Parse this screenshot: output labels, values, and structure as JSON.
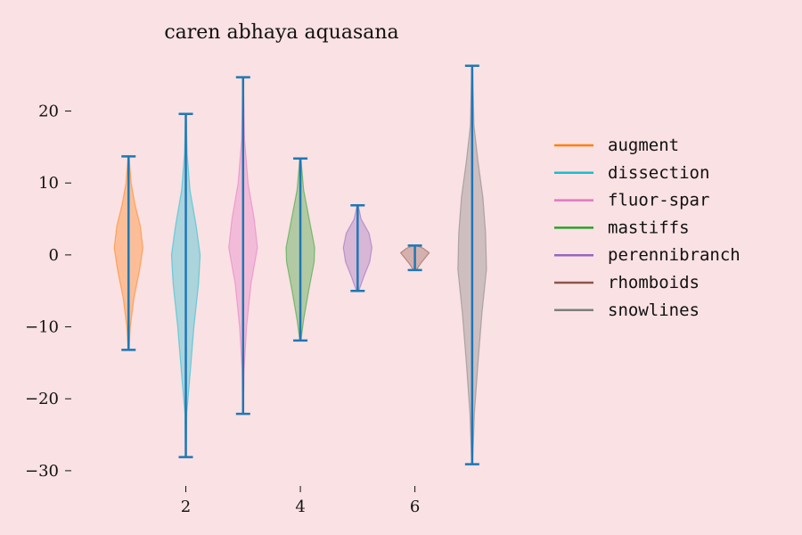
{
  "chart_data": {
    "type": "violin",
    "title": "caren abhaya aquasana",
    "xlabel": "",
    "ylabel": "",
    "xlim": [
      0.0,
      7.5
    ],
    "ylim": [
      -31.5,
      28.0
    ],
    "x_ticks": [
      2,
      4,
      6
    ],
    "y_ticks": [
      -30,
      -20,
      -10,
      0,
      10,
      20
    ],
    "grid": false,
    "legend_position": "right",
    "median_color": "#1f77b4",
    "series": [
      {
        "name": "augment",
        "position": 1,
        "color": "#ff7f0e",
        "min": -13.2,
        "max": 13.7,
        "median": 0.0,
        "density": [
          [
            -13.2,
            0.02
          ],
          [
            -10,
            0.08
          ],
          [
            -6,
            0.25
          ],
          [
            -2,
            0.52
          ],
          [
            1,
            0.67
          ],
          [
            4,
            0.55
          ],
          [
            7,
            0.3
          ],
          [
            10,
            0.12
          ],
          [
            13.7,
            0.02
          ]
        ]
      },
      {
        "name": "dissection",
        "position": 2,
        "color": "#17becf",
        "min": -28.1,
        "max": 19.6,
        "median": 0.0,
        "density": [
          [
            -28.1,
            0.01
          ],
          [
            -22,
            0.04
          ],
          [
            -16,
            0.2
          ],
          [
            -10,
            0.35
          ],
          [
            -4,
            0.55
          ],
          [
            0,
            0.62
          ],
          [
            4,
            0.45
          ],
          [
            9,
            0.18
          ],
          [
            14,
            0.06
          ],
          [
            19.6,
            0.01
          ]
        ]
      },
      {
        "name": "fluor-spar",
        "position": 3,
        "color": "#e377c2",
        "min": -22.1,
        "max": 24.7,
        "median": 0.0,
        "density": [
          [
            -22.1,
            0.01
          ],
          [
            -16,
            0.04
          ],
          [
            -10,
            0.14
          ],
          [
            -4,
            0.32
          ],
          [
            1,
            0.58
          ],
          [
            5,
            0.45
          ],
          [
            10,
            0.2
          ],
          [
            16,
            0.06
          ],
          [
            24.7,
            0.01
          ]
        ]
      },
      {
        "name": "mastiffs",
        "position": 4,
        "color": "#2ca02c",
        "min": -11.9,
        "max": 13.4,
        "median": 0.0,
        "density": [
          [
            -11.9,
            0.02
          ],
          [
            -9,
            0.12
          ],
          [
            -5,
            0.3
          ],
          [
            -1,
            0.5
          ],
          [
            1,
            0.52
          ],
          [
            5,
            0.32
          ],
          [
            9,
            0.12
          ],
          [
            13.4,
            0.02
          ]
        ]
      },
      {
        "name": "perennibranch",
        "position": 5,
        "color": "#9467bd",
        "min": -5.0,
        "max": 6.9,
        "median": 0.0,
        "density": [
          [
            -5,
            0.04
          ],
          [
            -3,
            0.22
          ],
          [
            -1,
            0.42
          ],
          [
            1,
            0.5
          ],
          [
            3,
            0.4
          ],
          [
            5,
            0.12
          ],
          [
            6.9,
            0.02
          ]
        ]
      },
      {
        "name": "rhomboids",
        "position": 6,
        "color": "#8c564b",
        "min": -2.1,
        "max": 1.3,
        "median": 0.0,
        "density": [
          [
            -2.1,
            0.05
          ],
          [
            -1.2,
            0.2
          ],
          [
            -0.4,
            0.36
          ],
          [
            0.3,
            0.5
          ],
          [
            0.9,
            0.3
          ],
          [
            1.3,
            0.08
          ]
        ]
      },
      {
        "name": "snowlines",
        "position": 7,
        "color": "#7f7f7f",
        "min": -29.1,
        "max": 26.3,
        "median": 0.0,
        "density": [
          [
            -29.1,
            0.01
          ],
          [
            -22,
            0.05
          ],
          [
            -15,
            0.13
          ],
          [
            -8,
            0.22
          ],
          [
            -2,
            0.32
          ],
          [
            3,
            0.3
          ],
          [
            8,
            0.24
          ],
          [
            13,
            0.13
          ],
          [
            18,
            0.04
          ],
          [
            26.3,
            0.01
          ]
        ]
      }
    ]
  }
}
